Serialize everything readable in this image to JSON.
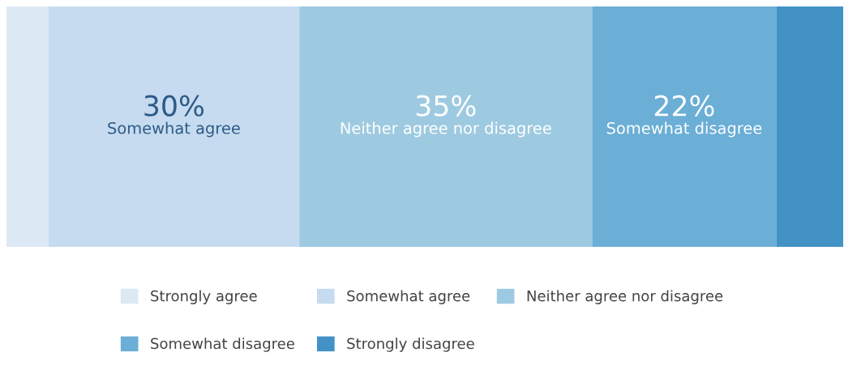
{
  "chart_data": {
    "type": "bar",
    "orientation": "horizontal",
    "stacked": true,
    "categories": [
      null
    ],
    "xlim": [
      0,
      100
    ],
    "tick_labels": false,
    "legend": "bottom",
    "series": [
      {
        "name": "Strongly agree",
        "color": "#dce9f5",
        "values": [
          5
        ],
        "value_labels": [
          null
        ]
      },
      {
        "name": "Somewhat agree",
        "color": "#c6dbef",
        "values": [
          30
        ],
        "value_labels": [
          "30%"
        ]
      },
      {
        "name": "Neither agree nor disagree",
        "color": "#9ecae1",
        "values": [
          35
        ],
        "value_labels": [
          "35%"
        ]
      },
      {
        "name": "Somewhat disagree",
        "color": "#6baed6",
        "values": [
          22
        ],
        "value_labels": [
          "22%"
        ]
      },
      {
        "name": "Strongly disagree",
        "color": "#4292c6",
        "values": [
          8
        ],
        "value_labels": [
          null
        ]
      }
    ]
  }
}
